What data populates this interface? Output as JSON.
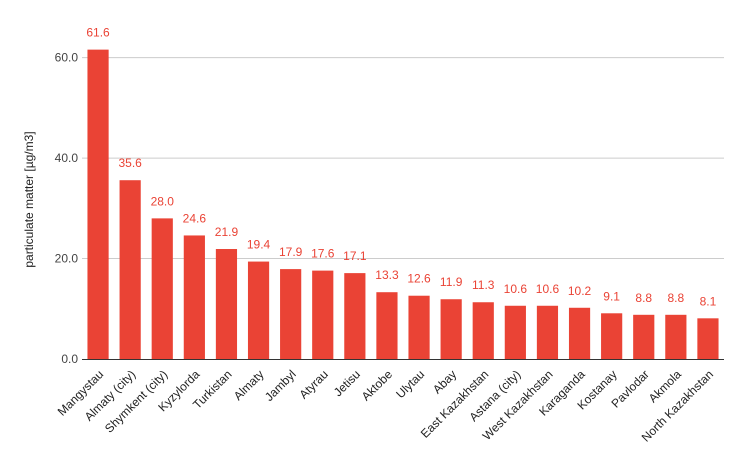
{
  "chart_data": {
    "type": "bar",
    "categories": [
      "Mangystau",
      "Almaty (city)",
      "Shymkent (city)",
      "Kyzylorda",
      "Turkistan",
      "Almaty",
      "Jambyl",
      "Atyrau",
      "Jetisu",
      "Aktobe",
      "Ulytau",
      "Abay",
      "East Kazakhstan",
      "Astana (city)",
      "West Kazakhstan",
      "Karaganda",
      "Kostanay",
      "Pavlodar",
      "Akmola",
      "North Kazakhstan"
    ],
    "values": [
      61.6,
      35.6,
      28.0,
      24.6,
      21.9,
      19.4,
      17.9,
      17.6,
      17.1,
      13.3,
      12.6,
      11.9,
      11.3,
      10.6,
      10.6,
      10.2,
      9.1,
      8.8,
      8.8,
      8.1
    ],
    "value_labels": [
      "61.6",
      "35.6",
      "28.0",
      "24.6",
      "21.9",
      "19.4",
      "17.9",
      "17.6",
      "17.1",
      "13.3",
      "12.6",
      "11.9",
      "11.3",
      "10.6",
      "10.6",
      "10.2",
      "9.1",
      "8.8",
      "8.8",
      "8.1"
    ],
    "title": "",
    "xlabel": "",
    "ylabel": "particulate matter [µg/m3]",
    "ylim": [
      0,
      67.5
    ],
    "yticks": [
      0,
      20,
      40,
      60
    ],
    "ytick_labels": [
      "0.0",
      "20.0",
      "40.0",
      "60.0"
    ],
    "grid": true,
    "legend": "none",
    "bar_color": "#ea4335",
    "label_color": "#ea4335",
    "grid_color": "#cccccc",
    "axis_color": "#333333"
  }
}
